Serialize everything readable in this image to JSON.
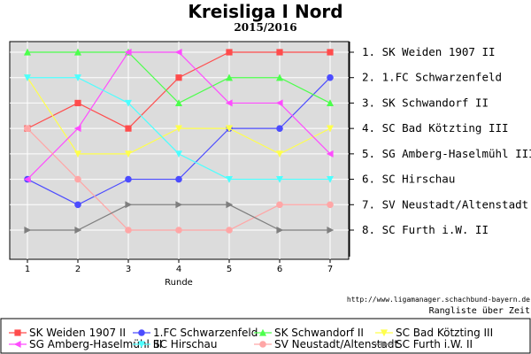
{
  "header": {
    "title": "Kreisliga I Nord",
    "subtitle": "2015/2016"
  },
  "footer": {
    "source_url": "http://www.ligamanager.schachbund-bayern.de",
    "caption": "Rangliste über Zeit"
  },
  "chart_data": {
    "type": "line",
    "title": "Kreisliga I Nord",
    "subtitle": "2015/2016",
    "xlabel": "Runde",
    "ylabel": "",
    "x": [
      1,
      2,
      3,
      4,
      5,
      6,
      7
    ],
    "xlim": [
      0.65,
      7.35
    ],
    "ylim": [
      1,
      8
    ],
    "y_inverted": true,
    "grid": true,
    "background": "#dcdcdc",
    "right_axis_labels": [
      "1. SK Weiden 1907 II",
      "2. 1.FC Schwarzenfeld",
      "3. SK Schwandorf II",
      "4. SC Bad Kötzting III",
      "5. SG Amberg-Haselmühl III",
      "6. SC Hirschau",
      "7. SV Neustadt/Altenstadt",
      "8. SC Furth i.W. II"
    ],
    "legend_position": "bottom",
    "series": [
      {
        "name": "SK Weiden 1907 II",
        "values": [
          4,
          3,
          4,
          2,
          1,
          1,
          1
        ],
        "color": "#ff4c4c",
        "marker": "square"
      },
      {
        "name": "1.FC Schwarzenfeld",
        "values": [
          6,
          7,
          6,
          6,
          4,
          4,
          2
        ],
        "color": "#4c4cff",
        "marker": "circle"
      },
      {
        "name": "SK Schwandorf II",
        "values": [
          1,
          1,
          1,
          3,
          2,
          2,
          3
        ],
        "color": "#4cff4c",
        "marker": "triangle-up"
      },
      {
        "name": "SC Bad Kötzting III",
        "values": [
          2,
          5,
          5,
          4,
          4,
          5,
          4
        ],
        "color": "#ffff4c",
        "marker": "triangle-down"
      },
      {
        "name": "SG Amberg-Haselmühl III",
        "values": [
          6,
          4,
          1,
          1,
          3,
          3,
          5
        ],
        "color": "#ff4cff",
        "marker": "triangle-left"
      },
      {
        "name": "SC Hirschau",
        "values": [
          2,
          2,
          3,
          5,
          6,
          6,
          6
        ],
        "color": "#4cffff",
        "marker": "triangle-down"
      },
      {
        "name": "SV Neustadt/Altenstadt",
        "values": [
          4,
          6,
          8,
          8,
          8,
          7,
          7
        ],
        "color": "#ffa6a6",
        "marker": "circle"
      },
      {
        "name": "SC Furth i.W. II",
        "values": [
          8,
          8,
          7,
          7,
          7,
          8,
          8
        ],
        "color": "#7f7f7f",
        "marker": "triangle-right"
      }
    ]
  }
}
